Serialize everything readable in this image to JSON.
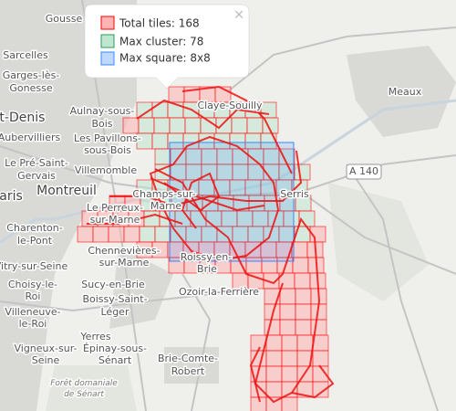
{
  "popup": {
    "close": "×",
    "items": [
      {
        "label": "Total tiles: 168",
        "color": "#ff0000",
        "fill": "#ffb3b3"
      },
      {
        "label": "Max cluster: 78",
        "color": "#2e9b5e",
        "fill": "#bfe6cf"
      },
      {
        "label": "Max square: 8x8",
        "color": "#3388ff",
        "fill": "#c2d9ff"
      }
    ]
  },
  "places": [
    "Gousse",
    "Sarcelles",
    "Garges-lès-",
    "Gonesse",
    "nt-Denis",
    "Aubervilliers",
    "Le Pré-Saint-",
    "Gervais",
    "aris",
    "Montreuil",
    "Charenton-",
    "le-Pont",
    "Vitry-sur-Seine",
    "Choisy-le-",
    "Roi",
    "Villeneuve-",
    "le-Roi",
    "Vigneux-sur-",
    "Seine",
    "Aulnay-sous-",
    "Bois",
    "Les Pavillons-",
    "sous-Bois",
    "Villemomble",
    "Le Perreux-",
    "sur-Marne",
    "Chennevières-",
    "sur-Marne",
    "Sucy-en-Brie",
    "Boissy-Saint-",
    "Léger",
    "Yerres",
    "Épinay-sous-",
    "Sénart",
    "Forêt domaniale",
    "de Sénart",
    "Champs-sur-",
    "Marne",
    "Claye-Souilly",
    "Meaux",
    "A 140",
    "Serris",
    "Roissy-en-",
    "Brie",
    "Ozoir-la-Ferrière",
    "Brie-Comte-",
    "Robert"
  ]
}
